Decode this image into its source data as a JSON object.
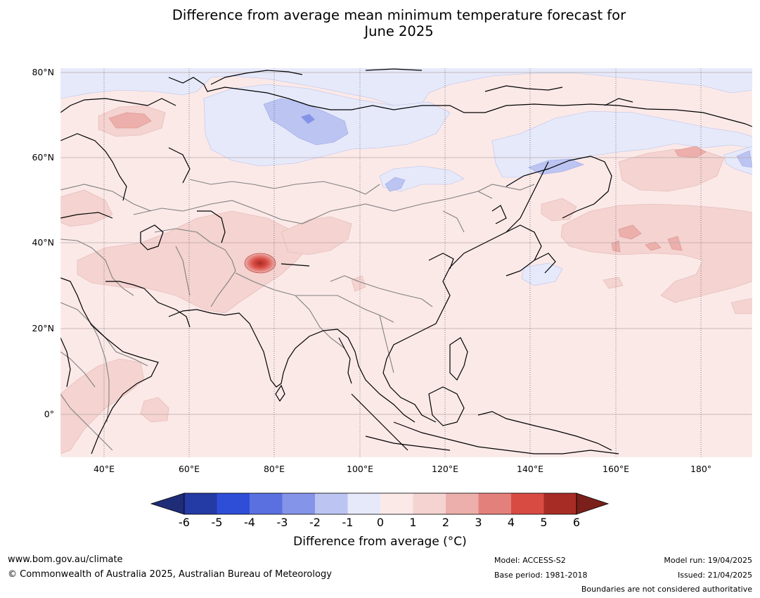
{
  "title_line1": "Difference from average mean minimum temperature forecast for",
  "title_line2": "June 2025",
  "lat_labels": [
    "80°N",
    "60°N",
    "40°N",
    "20°N",
    "0°"
  ],
  "lon_labels": [
    "40°E",
    "60°E",
    "80°E",
    "100°E",
    "120°E",
    "140°E",
    "160°E",
    "180°"
  ],
  "colorbar": {
    "ticks": [
      "-6",
      "-5",
      "-4",
      "-3",
      "-2",
      "-1",
      "0",
      "1",
      "2",
      "3",
      "4",
      "5",
      "6"
    ],
    "colors": [
      "#243aa4",
      "#2e4ed8",
      "#5a70e0",
      "#8494e8",
      "#bcc4f2",
      "#e6e9fa",
      "#fbe9e8",
      "#f4d3d0",
      "#ecafab",
      "#e4807b",
      "#d84b42",
      "#a72c25"
    ],
    "under_color": "#1f2c78",
    "over_color": "#7a1f1a",
    "label": "Difference from average (°C)"
  },
  "footer": {
    "website": "www.bom.gov.au/climate",
    "copyright": "© Commonwealth of Australia 2025, Australian Bureau of Meteorology",
    "model": "Model: ACCESS-S2",
    "base_period": "Base period: 1981-2018",
    "model_run": "Model run: 19/04/2025",
    "issued": "Issued: 21/04/2025",
    "disclaimer": "Boundaries are not considered authoritative"
  }
}
